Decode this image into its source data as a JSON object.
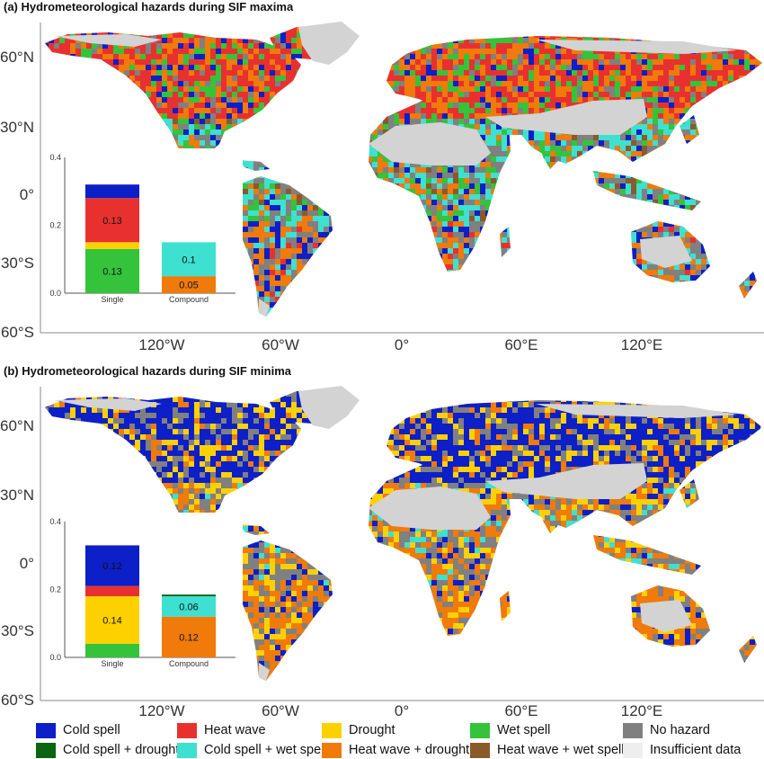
{
  "panels": [
    {
      "title": "(a) Hydrometeorological hazards during SIF maxima",
      "inset": {
        "y_ticks": [
          "0.4",
          "0.2",
          "0.0"
        ],
        "categories": [
          "Single",
          "Compound"
        ],
        "single": [
          {
            "hazard": "Wet spell",
            "value": 0.13,
            "label": "0.13"
          },
          {
            "hazard": "Drought",
            "value": 0.02,
            "label": ""
          },
          {
            "hazard": "Heat wave",
            "value": 0.13,
            "label": "0.13"
          },
          {
            "hazard": "Cold spell",
            "value": 0.04,
            "label": ""
          }
        ],
        "compound": [
          {
            "hazard": "Heat wave + drought",
            "value": 0.05,
            "label": "0.05"
          },
          {
            "hazard": "Cold spell + wet spell",
            "value": 0.1,
            "label": "0.1"
          }
        ]
      },
      "dominant": "heat"
    },
    {
      "title": "(b) Hydrometeorological hazards during SIF minima",
      "inset": {
        "y_ticks": [
          "0.4",
          "0.2",
          "0.0"
        ],
        "categories": [
          "Single",
          "Compound"
        ],
        "single": [
          {
            "hazard": "Wet spell",
            "value": 0.04,
            "label": ""
          },
          {
            "hazard": "Drought",
            "value": 0.14,
            "label": "0.14"
          },
          {
            "hazard": "Heat wave",
            "value": 0.03,
            "label": ""
          },
          {
            "hazard": "Cold spell",
            "value": 0.12,
            "label": "0.12"
          }
        ],
        "compound": [
          {
            "hazard": "Heat wave + drought",
            "value": 0.12,
            "label": "0.12"
          },
          {
            "hazard": "Cold spell + wet spell",
            "value": 0.06,
            "label": "0.06"
          },
          {
            "hazard": "Cold spell + drought",
            "value": 0.005,
            "label": ""
          }
        ]
      },
      "dominant": "cold"
    }
  ],
  "axes": {
    "lat_labels": [
      "60°N",
      "30°N",
      "0°",
      "30°S",
      "60°S"
    ],
    "lon_labels": [
      "120°W",
      "60°W",
      "0°",
      "60°E",
      "120°E"
    ]
  },
  "legend": [
    {
      "label": "Cold spell",
      "color": "#0d1fc7"
    },
    {
      "label": "Heat wave",
      "color": "#e8312f"
    },
    {
      "label": "Drought",
      "color": "#fdd100"
    },
    {
      "label": "Wet spell",
      "color": "#34c33b"
    },
    {
      "label": "No hazard",
      "color": "#808080"
    },
    {
      "label": "Cold spell + drought",
      "color": "#0b6512"
    },
    {
      "label": "Cold spell + wet spell",
      "color": "#3ee0d0"
    },
    {
      "label": "Heat wave + drought",
      "color": "#f07a0a"
    },
    {
      "label": "Heat wave + wet spell",
      "color": "#8b5a2b"
    },
    {
      "label": "Insufficient data",
      "color": "#eeeeee"
    }
  ]
}
